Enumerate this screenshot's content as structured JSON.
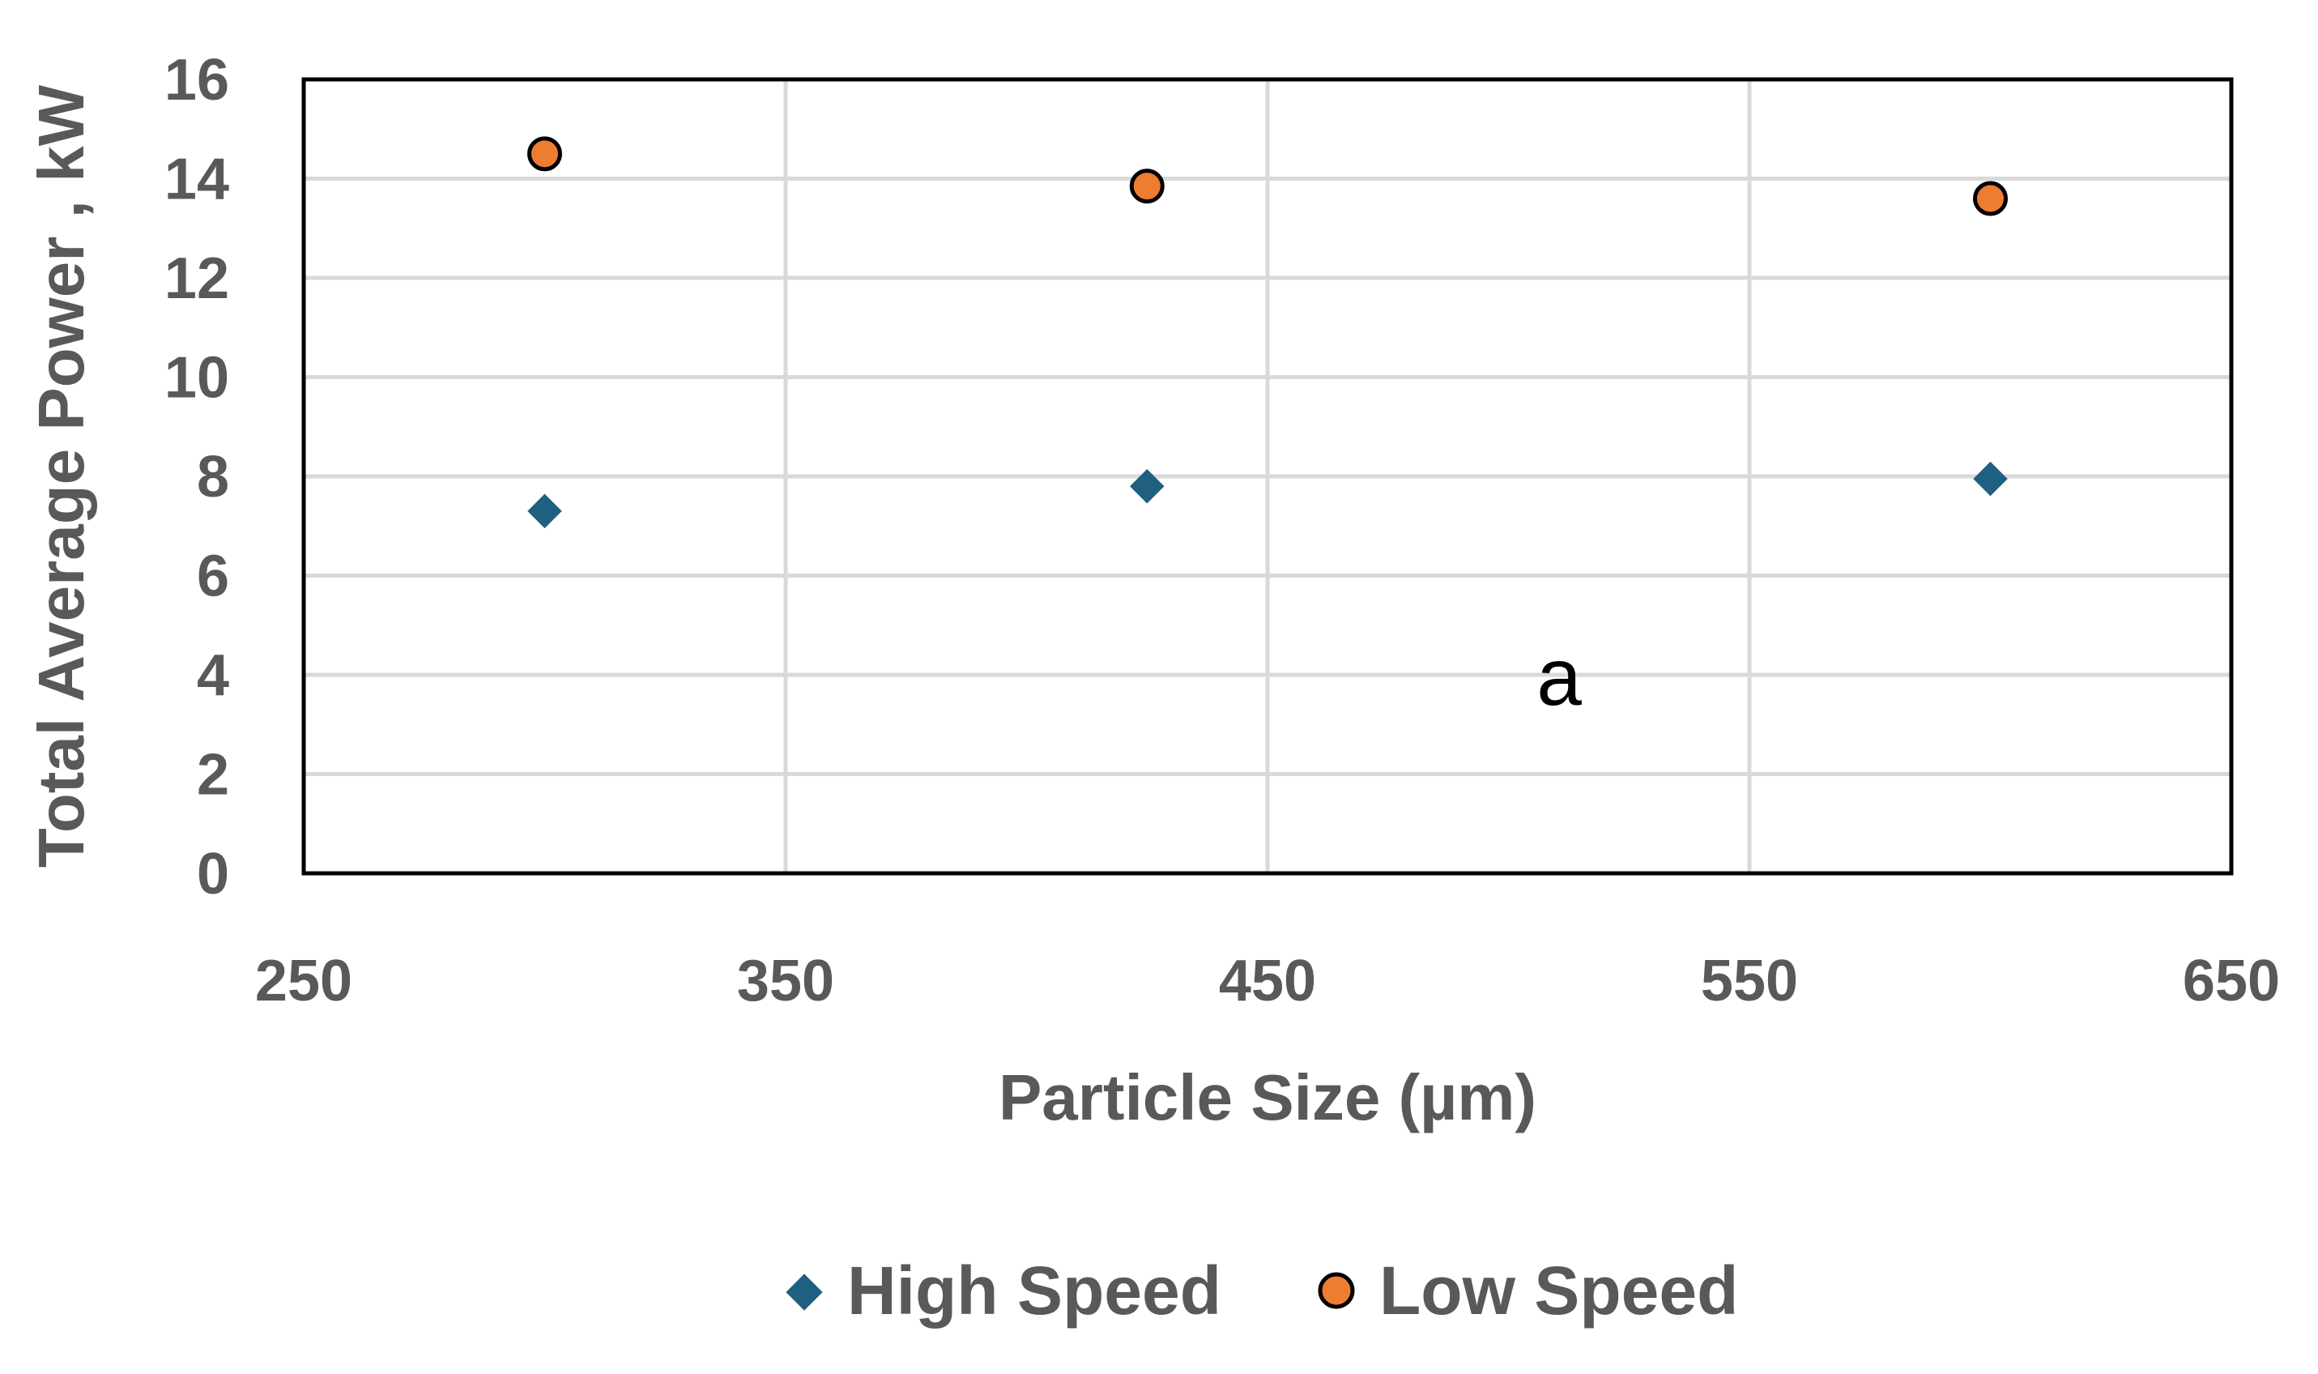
{
  "chart_data": {
    "type": "scatter",
    "xlabel": "Particle Size (µm)",
    "ylabel": "Total Average Power , kW",
    "xlim": [
      250,
      650
    ],
    "ylim": [
      0,
      16
    ],
    "x_ticks": [
      "250",
      "350",
      "450",
      "550",
      "650"
    ],
    "y_ticks": [
      "0",
      "2",
      "4",
      "6",
      "8",
      "10",
      "12",
      "14",
      "16"
    ],
    "grid": true,
    "legend_position": "bottom",
    "annotation": "a",
    "series": [
      {
        "name": "High Speed",
        "marker": "diamond",
        "color": "#1F5F7F",
        "points": [
          {
            "x": 300,
            "y": 7.3
          },
          {
            "x": 425,
            "y": 7.8
          },
          {
            "x": 600,
            "y": 7.95
          }
        ]
      },
      {
        "name": "Low Speed",
        "marker": "circle",
        "color": "#ED7D31",
        "edge_color": "#000000",
        "points": [
          {
            "x": 300,
            "y": 14.5
          },
          {
            "x": 425,
            "y": 13.85
          },
          {
            "x": 600,
            "y": 13.6
          }
        ]
      }
    ]
  }
}
